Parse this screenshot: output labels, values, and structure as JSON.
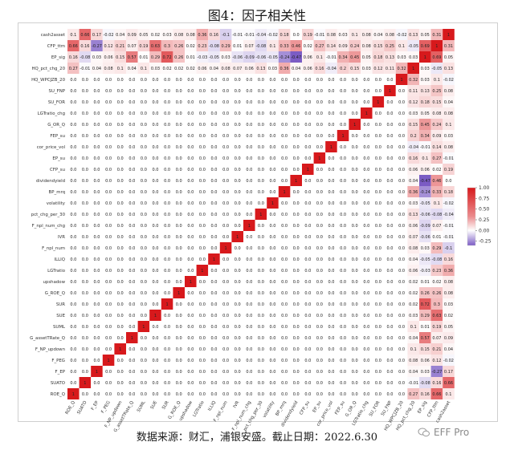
{
  "figure_title": "图4：因子相关性",
  "source_note": "数据来源：财汇，浦银安盛。截止日期：2022.6.30",
  "watermark_text": "EFF Pro",
  "chart_data": {
    "type": "heatmap",
    "labels": [
      "cash2asset",
      "CFP_ttm",
      "EP_sig",
      "HQ_pct_chg_20",
      "HQ_WPCJZB_20",
      "SU_FNP",
      "SU_FOR",
      "LGTratio_chg",
      "G_OR_Q",
      "FEP_su",
      "cor_price_vol",
      "EP_su",
      "CFP_su",
      "dividendyield",
      "BP_mrq",
      "volatility",
      "pct_chg_per_30",
      "F_npl_num_chg",
      "IVR",
      "F_npl_num",
      "ILLIQ",
      "LGTratio",
      "upshadow",
      "G_ROE_Q",
      "SUR",
      "SUE",
      "SUML",
      "G_assetTRate_Q",
      "F_NP_updown",
      "F_PEG",
      "F_EP",
      "SUATO",
      "ROE_Q"
    ],
    "x_labels": [
      "ROE_Q",
      "SUATO",
      "F_EP",
      "F_PEG",
      "F_NP_updown",
      "G_assetTRate_Q",
      "SUML",
      "SUE",
      "SUR",
      "G_ROE_Q",
      "upshadow",
      "LGTratio",
      "ILLIQ",
      "F_npl_num",
      "IVR",
      "F_npl_num_chg",
      "pct_chg_per_30",
      "volatility",
      "BP_mrq",
      "dividendyield",
      "CFP_su",
      "EP_su",
      "cor_price_vol",
      "FEP_su",
      "G_OR_Q",
      "LGTratio_chg",
      "SU_FOR",
      "SU_FNP",
      "HQ_WPCJZB_20",
      "HQ_pct_chg_20",
      "EP_sig",
      "CFP_ttm",
      "cash2asset"
    ],
    "legend_ticks": [
      "1.00",
      "0.75",
      "0.50",
      "0.25",
      "0.00",
      "-0.25"
    ],
    "vmin": -0.35,
    "vmax": 1.0,
    "colors": {
      "positive": "#d7191c",
      "neutral": "#ffffff",
      "negative": "#7b5cc4"
    },
    "pairs": [
      [
        "cash2asset",
        "CFP_ttm",
        0.31
      ],
      [
        "cash2asset",
        "EP_sig",
        0.05
      ],
      [
        "cash2asset",
        "HQ_pct_chg_20",
        0.13
      ],
      [
        "cash2asset",
        "HQ_WPCJZB_20",
        -0.02
      ],
      [
        "cash2asset",
        "SU_FNP",
        0.08
      ],
      [
        "cash2asset",
        "SU_FOR",
        0.04
      ],
      [
        "cash2asset",
        "LGTratio_chg",
        0.08
      ],
      [
        "cash2asset",
        "G_OR_Q",
        0.1
      ],
      [
        "cash2asset",
        "FEP_su",
        0.03
      ],
      [
        "cash2asset",
        "cor_price_vol",
        0.08
      ],
      [
        "cash2asset",
        "EP_su",
        -0.01
      ],
      [
        "cash2asset",
        "CFP_su",
        0.19
      ],
      [
        "cash2asset",
        "dividendyield",
        0.0
      ],
      [
        "cash2asset",
        "BP_mrq",
        0.18
      ],
      [
        "cash2asset",
        "volatility",
        -0.02
      ],
      [
        "cash2asset",
        "pct_chg_per_30",
        -0.04
      ],
      [
        "cash2asset",
        "F_npl_num_chg",
        -0.01
      ],
      [
        "cash2asset",
        "IVR",
        -0.01
      ],
      [
        "cash2asset",
        "F_npl_num",
        -0.1
      ],
      [
        "cash2asset",
        "ILLIQ",
        0.16
      ],
      [
        "cash2asset",
        "LGTratio",
        0.36
      ],
      [
        "cash2asset",
        "upshadow",
        0.08
      ],
      [
        "cash2asset",
        "G_ROE_Q",
        0.08
      ],
      [
        "cash2asset",
        "SUR",
        0.03
      ],
      [
        "cash2asset",
        "SUE",
        0.02
      ],
      [
        "cash2asset",
        "SUML",
        0.05
      ],
      [
        "cash2asset",
        "G_assetTRate_Q",
        0.09
      ],
      [
        "cash2asset",
        "F_NP_updown",
        0.04
      ],
      [
        "cash2asset",
        "F_PEG",
        -0.02
      ],
      [
        "cash2asset",
        "F_EP",
        0.17
      ],
      [
        "cash2asset",
        "SUATO",
        0.66
      ],
      [
        "cash2asset",
        "ROE_Q",
        0.1
      ],
      [
        "CFP_ttm",
        "EP_sig",
        0.69
      ],
      [
        "CFP_ttm",
        "HQ_pct_chg_20",
        -0.05
      ],
      [
        "CFP_ttm",
        "HQ_WPCJZB_20",
        0.1
      ],
      [
        "CFP_ttm",
        "SU_FNP",
        0.25
      ],
      [
        "CFP_ttm",
        "SU_FOR",
        0.15
      ],
      [
        "CFP_ttm",
        "LGTratio_chg",
        0.08
      ],
      [
        "CFP_ttm",
        "G_OR_Q",
        0.24
      ],
      [
        "CFP_ttm",
        "FEP_su",
        0.09
      ],
      [
        "CFP_ttm",
        "cor_price_vol",
        0.14
      ],
      [
        "CFP_ttm",
        "EP_su",
        0.27
      ],
      [
        "CFP_ttm",
        "CFP_su",
        0.02
      ],
      [
        "CFP_ttm",
        "dividendyield",
        0.46
      ],
      [
        "CFP_ttm",
        "BP_mrq",
        0.33
      ],
      [
        "CFP_ttm",
        "volatility",
        0.1
      ],
      [
        "CFP_ttm",
        "pct_chg_per_30",
        -0.08
      ],
      [
        "CFP_ttm",
        "F_npl_num_chg",
        0.07
      ],
      [
        "CFP_ttm",
        "IVR",
        0.01
      ],
      [
        "CFP_ttm",
        "F_npl_num",
        0.29
      ],
      [
        "CFP_ttm",
        "ILLIQ",
        -0.08
      ],
      [
        "CFP_ttm",
        "LGTratio",
        0.23
      ],
      [
        "CFP_ttm",
        "upshadow",
        0.02
      ],
      [
        "CFP_ttm",
        "G_ROE_Q",
        0.26
      ],
      [
        "CFP_ttm",
        "SUR",
        0.3
      ],
      [
        "CFP_ttm",
        "SUE",
        0.63
      ],
      [
        "CFP_ttm",
        "SUML",
        0.19
      ],
      [
        "CFP_ttm",
        "G_assetTRate_Q",
        0.07
      ],
      [
        "CFP_ttm",
        "F_NP_updown",
        0.21
      ],
      [
        "CFP_ttm",
        "F_PEG",
        0.12
      ],
      [
        "CFP_ttm",
        "F_EP",
        -0.27
      ],
      [
        "CFP_ttm",
        "SUATO",
        0.16
      ],
      [
        "CFP_ttm",
        "ROE_Q",
        0.66
      ],
      [
        "EP_sig",
        "HQ_pct_chg_20",
        0.03
      ],
      [
        "EP_sig",
        "HQ_WPCJZB_20",
        0.03
      ],
      [
        "EP_sig",
        "SU_FNP",
        0.13
      ],
      [
        "EP_sig",
        "SU_FOR",
        0.18
      ],
      [
        "EP_sig",
        "LGTratio_chg",
        0.05
      ],
      [
        "EP_sig",
        "G_OR_Q",
        0.45
      ],
      [
        "EP_sig",
        "FEP_su",
        0.34
      ],
      [
        "EP_sig",
        "cor_price_vol",
        -0.01
      ],
      [
        "EP_sig",
        "EP_su",
        0.1
      ],
      [
        "EP_sig",
        "CFP_su",
        0.06
      ],
      [
        "EP_sig",
        "dividendyield",
        -0.47
      ],
      [
        "EP_sig",
        "BP_mrq",
        -0.24
      ],
      [
        "EP_sig",
        "volatility",
        -0.05
      ],
      [
        "EP_sig",
        "pct_chg_per_30",
        -0.06
      ],
      [
        "EP_sig",
        "F_npl_num_chg",
        -0.09
      ],
      [
        "EP_sig",
        "IVR",
        -0.06
      ],
      [
        "EP_sig",
        "F_npl_num",
        0.03
      ],
      [
        "EP_sig",
        "ILLIQ",
        -0.05
      ],
      [
        "EP_sig",
        "LGTratio",
        -0.03
      ],
      [
        "EP_sig",
        "upshadow",
        0.01
      ],
      [
        "EP_sig",
        "G_ROE_Q",
        0.26
      ],
      [
        "EP_sig",
        "SUR",
        0.72
      ],
      [
        "EP_sig",
        "SUE",
        0.29
      ],
      [
        "EP_sig",
        "SUML",
        0.01
      ],
      [
        "EP_sig",
        "G_assetTRate_Q",
        0.57
      ],
      [
        "EP_sig",
        "F_NP_updown",
        0.15
      ],
      [
        "EP_sig",
        "F_PEG",
        0.06
      ],
      [
        "EP_sig",
        "F_EP",
        0.03
      ],
      [
        "EP_sig",
        "SUATO",
        -0.08
      ],
      [
        "EP_sig",
        "ROE_Q",
        0.16
      ],
      [
        "HQ_pct_chg_20",
        "HQ_WPCJZB_20",
        0.32
      ],
      [
        "HQ_pct_chg_20",
        "SU_FNP",
        0.11
      ],
      [
        "HQ_pct_chg_20",
        "SU_FOR",
        0.12
      ],
      [
        "HQ_pct_chg_20",
        "LGTratio_chg",
        0.03
      ],
      [
        "HQ_pct_chg_20",
        "G_OR_Q",
        0.15
      ],
      [
        "HQ_pct_chg_20",
        "FEP_su",
        0.2
      ],
      [
        "HQ_pct_chg_20",
        "cor_price_vol",
        -0.04
      ],
      [
        "HQ_pct_chg_20",
        "EP_su",
        0.16
      ],
      [
        "HQ_pct_chg_20",
        "CFP_su",
        0.06
      ],
      [
        "HQ_pct_chg_20",
        "dividendyield",
        0.04
      ],
      [
        "HQ_pct_chg_20",
        "BP_mrq",
        0.36
      ],
      [
        "HQ_pct_chg_20",
        "volatility",
        0.03
      ],
      [
        "HQ_pct_chg_20",
        "pct_chg_per_30",
        0.13
      ],
      [
        "HQ_pct_chg_20",
        "F_npl_num_chg",
        0.06
      ],
      [
        "HQ_pct_chg_20",
        "IVR",
        0.07
      ],
      [
        "HQ_pct_chg_20",
        "F_npl_num",
        0.08
      ],
      [
        "HQ_pct_chg_20",
        "ILLIQ",
        0.04
      ],
      [
        "HQ_pct_chg_20",
        "LGTratio",
        0.06
      ],
      [
        "HQ_pct_chg_20",
        "upshadow",
        0.02
      ],
      [
        "HQ_pct_chg_20",
        "G_ROE_Q",
        0.02
      ],
      [
        "HQ_pct_chg_20",
        "SUR",
        0.02
      ],
      [
        "HQ_pct_chg_20",
        "SUE",
        0.03
      ],
      [
        "HQ_pct_chg_20",
        "SUML",
        0.1
      ],
      [
        "HQ_pct_chg_20",
        "G_assetTRate_Q",
        0.04
      ],
      [
        "HQ_pct_chg_20",
        "F_NP_updown",
        0.1
      ],
      [
        "HQ_pct_chg_20",
        "F_PEG",
        0.08
      ],
      [
        "HQ_pct_chg_20",
        "F_EP",
        0.04
      ],
      [
        "HQ_pct_chg_20",
        "SUATO",
        -0.01
      ],
      [
        "HQ_pct_chg_20",
        "ROE_Q",
        0.27
      ]
    ]
  }
}
